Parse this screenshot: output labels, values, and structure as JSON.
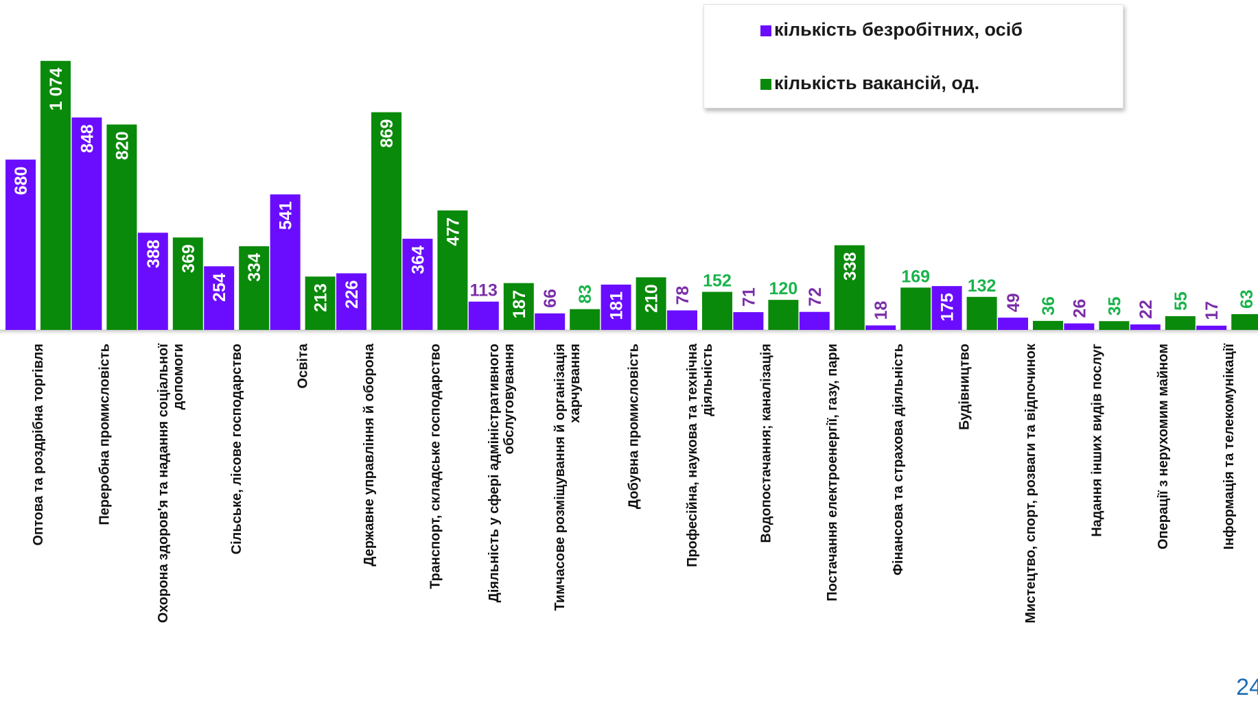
{
  "chart_data": {
    "type": "bar",
    "ylim": [
      0,
      1150
    ],
    "grid": false,
    "legend_position": "top-right",
    "categories": [
      [
        "Оптова та роздрібна торгівля"
      ],
      [
        "Переробна промисловість"
      ],
      [
        "Охорона здоров'я та надання соціальної",
        "допомоги"
      ],
      [
        "Сільське, лісове господарство"
      ],
      [
        "Освіта"
      ],
      [
        "Державне управління й оборона"
      ],
      [
        "Транспорт, складське господарство"
      ],
      [
        "Діяльність у сфері адміністративного",
        "обслуговування"
      ],
      [
        "Тимчасове розміщування й організація",
        "харчування"
      ],
      [
        "Добувна промисловість"
      ],
      [
        "Професійна, наукова та технічна",
        "діяльність"
      ],
      [
        "Водопостачання; каналізація"
      ],
      [
        "Постачання електроенергії, газу, пари"
      ],
      [
        "Фінансова та страхова діяльність"
      ],
      [
        "Будівництво"
      ],
      [
        "Мистецтво, спорт, розваги та відпочинок"
      ],
      [
        "Надання інших видів послуг"
      ],
      [
        "Операції з нерухомим майном"
      ],
      [
        "Інформація та телекомунікації"
      ]
    ],
    "series": [
      {
        "name": "кількість безробітних, осіб",
        "color": "#6a0dff",
        "label_color": "#7b2fa8",
        "values": [
          680,
          848,
          388,
          254,
          541,
          226,
          364,
          113,
          66,
          181,
          78,
          71,
          72,
          18,
          175,
          49,
          26,
          22,
          17
        ],
        "labels": [
          "680",
          "848",
          "388",
          "254",
          "541",
          "226",
          "364",
          "113",
          "66",
          "181",
          "78",
          "71",
          "72",
          "18",
          "175",
          "49",
          "26",
          "22",
          "17"
        ]
      },
      {
        "name": "кількість вакансій, од.",
        "color": "#0a8a0a",
        "label_color": "#19b34a",
        "values": [
          1074,
          820,
          369,
          334,
          213,
          869,
          477,
          187,
          83,
          210,
          152,
          120,
          338,
          169,
          132,
          36,
          35,
          55,
          63
        ],
        "labels": [
          "1 074",
          "820",
          "369",
          "334",
          "213",
          "869",
          "477",
          "187",
          "83",
          "210",
          "152",
          "120",
          "338",
          "169",
          "132",
          "36",
          "35",
          "55",
          "63"
        ]
      }
    ]
  },
  "page_number": "24"
}
